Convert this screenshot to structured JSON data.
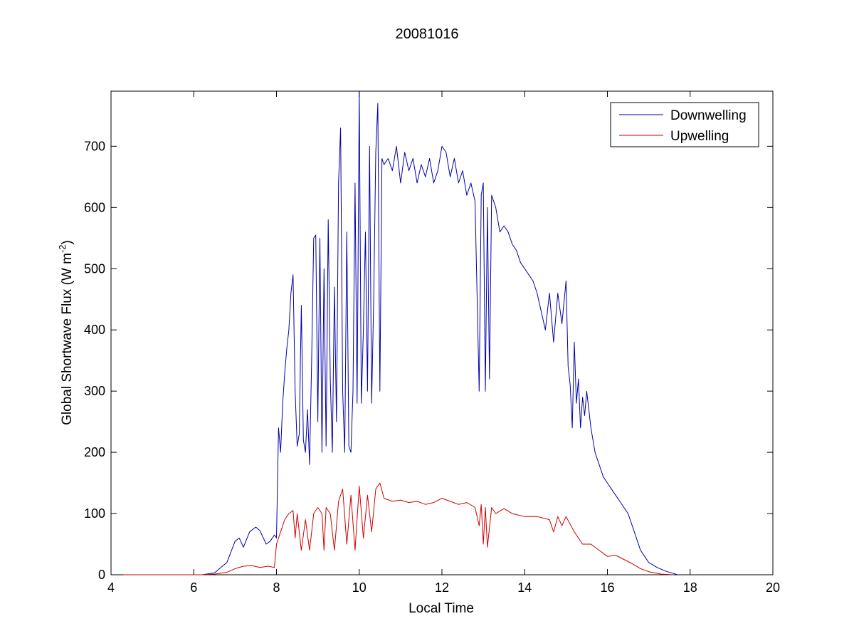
{
  "chart_data": {
    "type": "line",
    "title": "20081016",
    "xlabel": "Local Time",
    "ylabel": "Global Shortwave Flux (W m",
    "ylabel_superscript": "-2",
    "ylabel_suffix": ")",
    "xlim": [
      4,
      20
    ],
    "ylim": [
      0,
      790
    ],
    "xticks": [
      4,
      6,
      8,
      10,
      12,
      14,
      16,
      18,
      20
    ],
    "yticks": [
      0,
      100,
      200,
      300,
      400,
      500,
      600,
      700
    ],
    "grid": false,
    "legend_position": "top-right",
    "series": [
      {
        "name": "Downwelling",
        "color": "#0000aa",
        "x": [
          4.3,
          5.3,
          6.2,
          6.5,
          6.8,
          7.0,
          7.1,
          7.2,
          7.35,
          7.5,
          7.6,
          7.75,
          7.85,
          7.95,
          8.0,
          8.05,
          8.1,
          8.15,
          8.2,
          8.25,
          8.3,
          8.35,
          8.4,
          8.45,
          8.5,
          8.55,
          8.6,
          8.65,
          8.7,
          8.75,
          8.8,
          8.85,
          8.9,
          8.95,
          9.0,
          9.05,
          9.1,
          9.15,
          9.2,
          9.25,
          9.3,
          9.35,
          9.4,
          9.45,
          9.5,
          9.55,
          9.6,
          9.65,
          9.7,
          9.75,
          9.8,
          9.85,
          9.9,
          9.95,
          10.0,
          10.05,
          10.1,
          10.15,
          10.2,
          10.25,
          10.3,
          10.35,
          10.4,
          10.45,
          10.5,
          10.55,
          10.6,
          10.7,
          10.8,
          10.9,
          11.0,
          11.1,
          11.2,
          11.3,
          11.4,
          11.5,
          11.6,
          11.7,
          11.8,
          11.9,
          12.0,
          12.1,
          12.2,
          12.3,
          12.4,
          12.5,
          12.6,
          12.7,
          12.8,
          12.9,
          12.95,
          13.0,
          13.05,
          13.1,
          13.15,
          13.2,
          13.3,
          13.4,
          13.5,
          13.6,
          13.7,
          13.8,
          13.9,
          14.0,
          14.1,
          14.2,
          14.3,
          14.4,
          14.5,
          14.6,
          14.7,
          14.8,
          14.9,
          15.0,
          15.05,
          15.1,
          15.15,
          15.2,
          15.25,
          15.3,
          15.35,
          15.4,
          15.45,
          15.5,
          15.6,
          15.7,
          15.8,
          15.9,
          16.0,
          16.1,
          16.2,
          16.3,
          16.4,
          16.5,
          16.6,
          16.7,
          16.8,
          17.0,
          17.2,
          17.4,
          17.6,
          17.7
        ],
        "y": [
          0,
          0,
          0,
          3,
          20,
          55,
          60,
          45,
          70,
          78,
          72,
          50,
          55,
          65,
          60,
          240,
          200,
          280,
          330,
          370,
          400,
          460,
          490,
          300,
          210,
          230,
          440,
          220,
          200,
          270,
          180,
          350,
          550,
          555,
          250,
          550,
          200,
          500,
          210,
          580,
          320,
          200,
          470,
          250,
          640,
          730,
          300,
          200,
          560,
          210,
          200,
          300,
          640,
          280,
          790,
          280,
          400,
          560,
          300,
          700,
          280,
          450,
          690,
          770,
          300,
          680,
          670,
          680,
          660,
          700,
          640,
          690,
          660,
          680,
          640,
          670,
          650,
          680,
          640,
          660,
          700,
          690,
          650,
          680,
          640,
          660,
          620,
          640,
          610,
          300,
          620,
          640,
          300,
          600,
          320,
          620,
          600,
          560,
          570,
          560,
          540,
          530,
          510,
          500,
          490,
          480,
          460,
          430,
          400,
          460,
          380,
          460,
          410,
          480,
          340,
          310,
          240,
          380,
          280,
          320,
          240,
          290,
          260,
          300,
          240,
          200,
          180,
          160,
          150,
          140,
          130,
          120,
          110,
          100,
          80,
          60,
          40,
          20,
          12,
          6,
          2,
          0
        ]
      },
      {
        "name": "Upwelling",
        "color": "#cc0000",
        "x": [
          4.3,
          5.3,
          6.2,
          6.5,
          6.8,
          7.0,
          7.2,
          7.4,
          7.6,
          7.8,
          7.95,
          8.0,
          8.1,
          8.2,
          8.3,
          8.4,
          8.45,
          8.5,
          8.6,
          8.7,
          8.8,
          8.9,
          9.0,
          9.1,
          9.15,
          9.2,
          9.3,
          9.4,
          9.5,
          9.6,
          9.7,
          9.8,
          9.9,
          10.0,
          10.1,
          10.2,
          10.3,
          10.4,
          10.5,
          10.6,
          10.8,
          11.0,
          11.2,
          11.4,
          11.6,
          11.8,
          12.0,
          12.2,
          12.4,
          12.6,
          12.8,
          12.9,
          12.95,
          13.0,
          13.05,
          13.1,
          13.2,
          13.3,
          13.5,
          13.7,
          14.0,
          14.3,
          14.6,
          14.7,
          14.8,
          14.9,
          15.0,
          15.2,
          15.4,
          15.6,
          15.8,
          16.0,
          16.2,
          16.4,
          16.6,
          16.8,
          17.0,
          17.3,
          17.6
        ],
        "y": [
          0,
          0,
          0,
          1,
          4,
          10,
          14,
          15,
          12,
          14,
          12,
          50,
          70,
          90,
          100,
          105,
          60,
          100,
          40,
          90,
          40,
          100,
          110,
          100,
          40,
          110,
          100,
          40,
          120,
          140,
          50,
          130,
          40,
          145,
          60,
          130,
          70,
          140,
          150,
          125,
          120,
          122,
          118,
          120,
          115,
          118,
          125,
          120,
          115,
          118,
          110,
          80,
          115,
          50,
          110,
          45,
          110,
          100,
          108,
          100,
          95,
          95,
          90,
          70,
          95,
          80,
          95,
          70,
          50,
          50,
          40,
          30,
          32,
          25,
          18,
          10,
          5,
          1,
          0
        ]
      }
    ]
  }
}
